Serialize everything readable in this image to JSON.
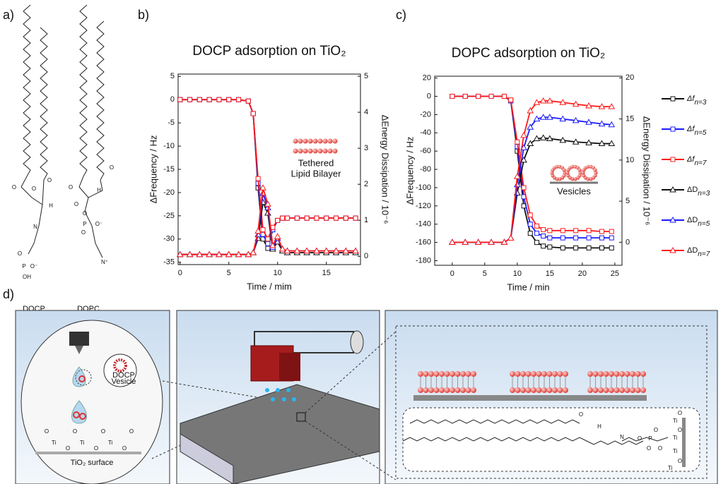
{
  "panel_labels": [
    "a)",
    "b)",
    "c)",
    "d)"
  ],
  "structures": {
    "names": [
      "DOCP",
      "DOPC"
    ],
    "atoms": [
      "O",
      "O",
      "O",
      "H",
      "N",
      "O",
      "P",
      "O⁻",
      "OH",
      "O",
      "O",
      "O",
      "H",
      "O",
      "P",
      "O⁻",
      "O",
      "N⁺"
    ]
  },
  "chart_data": [
    {
      "type": "line",
      "title": "DOCP adsorption on TiO₂",
      "x_label": "Time / mim",
      "y_label": "ΔFrequency / Hz",
      "y2_label": "ΔEnergy Dissipation / 10⁻⁶",
      "annotation": [
        "Tethered",
        "Lipid Bilayer"
      ],
      "x": [
        0,
        1,
        2,
        3,
        4,
        5,
        6,
        7,
        7.5,
        8,
        8.5,
        9,
        9.5,
        10,
        10.5,
        11,
        12,
        13,
        14,
        15,
        16,
        17,
        18
      ],
      "xlim": [
        -0.2,
        18.5
      ],
      "xticks": [
        0,
        5,
        10,
        15
      ],
      "ylim": [
        -35.5,
        5.5
      ],
      "yticks": [
        -35,
        -30,
        -25,
        -20,
        -15,
        -10,
        -5,
        0,
        5
      ],
      "y2lim": [
        -0.23,
        5.06
      ],
      "y2ticks": [
        0,
        1,
        2,
        3,
        4,
        5
      ],
      "series": [
        {
          "color": "#111111",
          "marker": "square",
          "values": [
            0,
            0,
            0,
            0,
            0,
            0,
            0,
            -0.3,
            -3,
            -19,
            -30,
            -32,
            -28,
            -26,
            -25.5,
            -25.5,
            -25.5,
            -25.5,
            -25.5,
            -25.5,
            -25.5,
            -25.5,
            -25.5
          ]
        },
        {
          "color": "#1a1aff",
          "marker": "square",
          "values": [
            0,
            0,
            0,
            0,
            0,
            0,
            0,
            -0.3,
            -3,
            -18,
            -29,
            -31,
            -28,
            -26,
            -25.5,
            -25.5,
            -25.5,
            -25.5,
            -25.5,
            -25.5,
            -25.5,
            -25.5,
            -25.5
          ]
        },
        {
          "color": "#ff1a1a",
          "marker": "square",
          "values": [
            0,
            0,
            0,
            0,
            0,
            0,
            0,
            -0.3,
            -3,
            -17,
            -28,
            -30,
            -27.5,
            -26,
            -25.5,
            -25.5,
            -25.5,
            -25.5,
            -25.5,
            -25.5,
            -25.5,
            -25.5,
            -25.5
          ]
        },
        {
          "color": "#111111",
          "marker": "triangle",
          "axis": "y2",
          "values": [
            0.05,
            0.05,
            0.05,
            0.05,
            0.05,
            0.05,
            0.05,
            0.05,
            0.1,
            0.5,
            1.5,
            1.2,
            0.2,
            0.4,
            0.15,
            0.1,
            0.1,
            0.1,
            0.1,
            0.1,
            0.1,
            0.1,
            0.1
          ]
        },
        {
          "color": "#1a1aff",
          "marker": "triangle",
          "axis": "y2",
          "values": [
            0.05,
            0.05,
            0.05,
            0.05,
            0.05,
            0.05,
            0.05,
            0.05,
            0.1,
            0.6,
            1.75,
            1.35,
            0.25,
            0.5,
            0.2,
            0.15,
            0.15,
            0.15,
            0.15,
            0.15,
            0.15,
            0.15,
            0.15
          ]
        },
        {
          "color": "#ff1a1a",
          "marker": "triangle",
          "axis": "y2",
          "values": [
            0.05,
            0.05,
            0.05,
            0.05,
            0.05,
            0.05,
            0.05,
            0.05,
            0.1,
            0.7,
            1.9,
            1.45,
            0.3,
            0.55,
            0.2,
            0.15,
            0.15,
            0.15,
            0.15,
            0.15,
            0.15,
            0.15,
            0.15
          ]
        }
      ]
    },
    {
      "type": "line",
      "title": "DOPC adsorption on TiO₂",
      "x_label": "Time / min",
      "y_label": "ΔFrequency / Hz",
      "y2_label": "ΔEnergy Dissipation / 10⁻⁶",
      "annotation": [
        "Vesicles"
      ],
      "x": [
        0,
        2,
        4,
        6,
        8,
        9,
        10,
        11,
        12,
        13,
        14,
        15,
        17,
        19,
        21,
        23,
        24.5
      ],
      "xlim": [
        -2.7,
        26.1
      ],
      "xticks": [
        0,
        5,
        10,
        15,
        20,
        25
      ],
      "ylim": [
        -185,
        22
      ],
      "yticks": [
        -180,
        -160,
        -140,
        -120,
        -100,
        -80,
        -60,
        -40,
        -20,
        0,
        20
      ],
      "y2lim": [
        -2.8,
        20.2
      ],
      "y2ticks": [
        0,
        5,
        10,
        15,
        20
      ],
      "series": [
        {
          "name": "Δf",
          "subscript": "n=3",
          "color": "#111111",
          "marker": "square",
          "values": [
            0,
            0,
            0,
            0,
            0,
            -5,
            -60,
            -120,
            -150,
            -160,
            -164,
            -165,
            -166,
            -166,
            -166,
            -166,
            -166
          ]
        },
        {
          "name": "Δf",
          "subscript": "n=5",
          "color": "#1a1aff",
          "marker": "square",
          "values": [
            0,
            0,
            0,
            0,
            0,
            -5,
            -55,
            -110,
            -140,
            -150,
            -153,
            -155,
            -155,
            -155,
            -155,
            -155,
            -155
          ]
        },
        {
          "name": "Δf",
          "subscript": "n=7",
          "color": "#ff1a1a",
          "marker": "square",
          "values": [
            0,
            0,
            0,
            0,
            0,
            -4,
            -50,
            -100,
            -130,
            -142,
            -146,
            -147,
            -147,
            -147,
            -147,
            -148,
            -148
          ]
        },
        {
          "name": "ΔD",
          "subscript": "n=3",
          "color": "#111111",
          "marker": "triangle",
          "axis": "y2",
          "values": [
            0,
            0,
            0,
            0,
            0,
            0.5,
            6,
            10,
            12,
            12.6,
            12.7,
            12.6,
            12.4,
            12.2,
            12.1,
            12,
            12
          ]
        },
        {
          "name": "ΔD",
          "subscript": "n=5",
          "color": "#1a1aff",
          "marker": "triangle",
          "axis": "y2",
          "values": [
            0,
            0,
            0,
            0,
            0,
            0.5,
            7,
            11.5,
            14,
            15,
            15.2,
            15.2,
            15,
            14.8,
            14.6,
            14.4,
            14.3
          ]
        },
        {
          "name": "ΔD",
          "subscript": "n=7",
          "color": "#ff1a1a",
          "marker": "triangle",
          "axis": "y2",
          "values": [
            0,
            0,
            0,
            0,
            0,
            0.5,
            8,
            13,
            16,
            17,
            17.2,
            17.2,
            17,
            16.8,
            16.6,
            16.5,
            16.5
          ]
        }
      ]
    }
  ],
  "diagram": {
    "vesicle_label": [
      "DOCP",
      "Vesicle"
    ],
    "surface_label": "TiO₂ surface",
    "surface_atoms": [
      "O",
      "O",
      "O",
      "O",
      "Ti",
      "Ti",
      "Ti",
      "O",
      "O",
      "O"
    ],
    "molecule_atoms": [
      "O",
      "H",
      "N",
      "O",
      "P",
      "O",
      "O",
      "O",
      "Ti",
      "Ti",
      "Ti",
      "Ti",
      "O",
      "O",
      "O"
    ]
  }
}
